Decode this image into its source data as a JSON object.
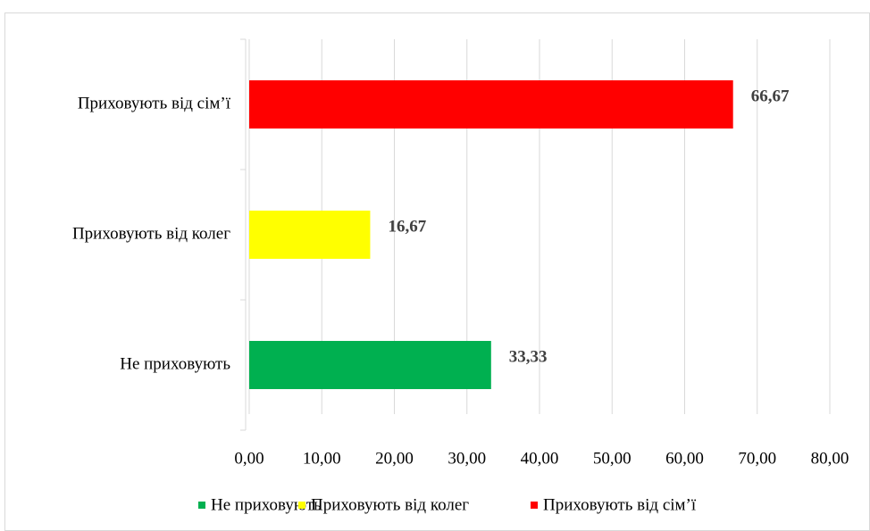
{
  "chart_data": {
    "type": "hbar",
    "categories": [
      "Не приховують",
      "Приховують від колег",
      "Приховують від сім’ї"
    ],
    "series": [
      {
        "name": "Не приховують",
        "color": "#00b050",
        "values": [
          33.33,
          null,
          null
        ],
        "value_labels": [
          "33,33",
          null,
          null
        ]
      },
      {
        "name": "Приховують від колег",
        "color": "#ffff00",
        "values": [
          null,
          16.67,
          null
        ],
        "value_labels": [
          null,
          "16,67",
          null
        ]
      },
      {
        "name": "Приховують від сім’ї",
        "color": "#ff0000",
        "values": [
          null,
          null,
          66.67
        ],
        "value_labels": [
          null,
          null,
          "66,67"
        ]
      }
    ],
    "xlim": [
      0,
      80
    ],
    "xticks": [
      {
        "value": 0,
        "label": "0,00"
      },
      {
        "value": 10,
        "label": "10,00"
      },
      {
        "value": 20,
        "label": "20,00"
      },
      {
        "value": 30,
        "label": "30,00"
      },
      {
        "value": 40,
        "label": "40,00"
      },
      {
        "value": 50,
        "label": "50,00"
      },
      {
        "value": 60,
        "label": "60,00"
      },
      {
        "value": 70,
        "label": "70,00"
      },
      {
        "value": 80,
        "label": "80,00"
      }
    ],
    "grid": true,
    "legend": "bottom"
  }
}
